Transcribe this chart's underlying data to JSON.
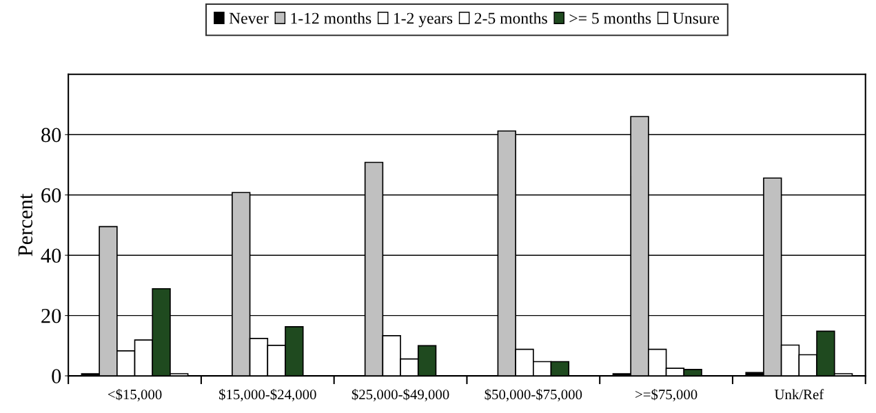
{
  "chart_data": {
    "type": "bar",
    "ylabel": "Percent",
    "categories": [
      "<$15,000",
      "$15,000-$24,000",
      "$25,000-$49,000",
      "$50,000-$75,000",
      ">=$75,000",
      "Unk/Ref"
    ],
    "series": [
      {
        "name": "Never",
        "color": "#000000",
        "values": [
          0.7,
          0,
          0,
          0,
          0.7,
          1.1
        ]
      },
      {
        "name": "1-12 months",
        "color": "#c0c0c0",
        "values": [
          49.5,
          60.8,
          70.8,
          81.2,
          86,
          65.6
        ]
      },
      {
        "name": "1-2 years",
        "color": "#ffffff",
        "values": [
          8.3,
          12.4,
          13.3,
          8.8,
          8.8,
          10.2
        ]
      },
      {
        "name": "2-5 months",
        "color": "#ffffff",
        "values": [
          11.9,
          10.1,
          5.6,
          4.7,
          2.5,
          7.0
        ]
      },
      {
        "name": ">= 5 months",
        "color": "#1f4a1f",
        "values": [
          28.9,
          16.3,
          10.0,
          4.7,
          2.1,
          14.8
        ]
      },
      {
        "name": "Unsure",
        "color": "#ffffff",
        "values": [
          0.7,
          0,
          0,
          0,
          0,
          0.7
        ]
      }
    ],
    "ylim": [
      0,
      100
    ],
    "yticks": [
      0,
      20,
      40,
      60,
      80
    ],
    "grid": "y",
    "legend": "top"
  }
}
